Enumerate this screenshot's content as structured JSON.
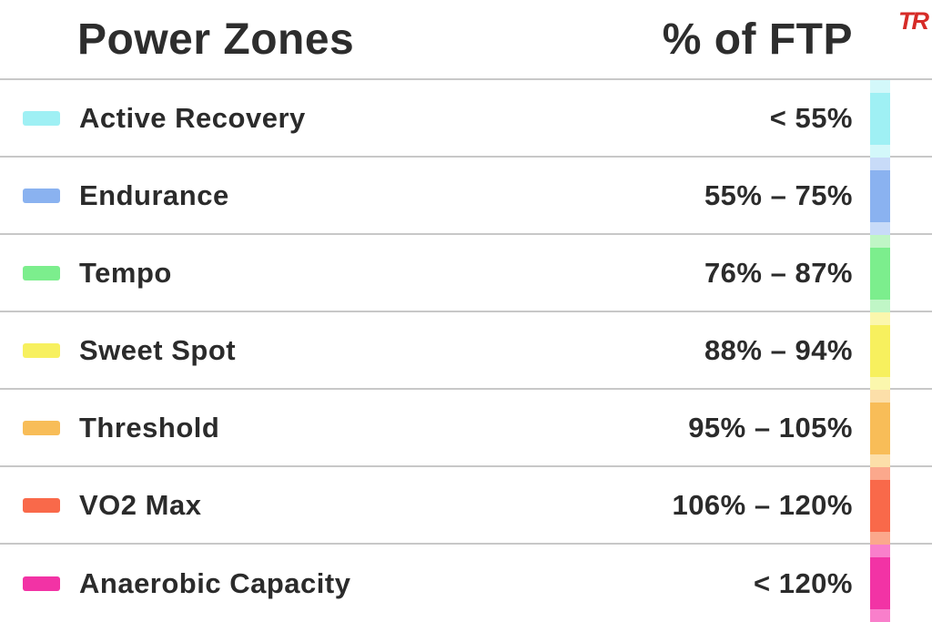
{
  "header": {
    "title": "Power Zones",
    "value_column": "% of FTP"
  },
  "logo": {
    "text": "TR",
    "color": "#d62b27"
  },
  "colors": {
    "text": "#2d2d2d",
    "divider": "#c8c8c8",
    "background": "#ffffff"
  },
  "chart_data": {
    "type": "table",
    "title": "Power Zones",
    "columns": [
      "Power Zones",
      "% of FTP"
    ],
    "rows": [
      {
        "zone": "Active Recovery",
        "ftp_range": "< 55%",
        "color": "#9ff0f4",
        "color_light": "#d3f8fa"
      },
      {
        "zone": "Endurance",
        "ftp_range": "55% – 75%",
        "color": "#8ab2f0",
        "color_light": "#c8dbf8"
      },
      {
        "zone": "Tempo",
        "ftp_range": "76% – 87%",
        "color": "#7cee8d",
        "color_light": "#c0f6c6"
      },
      {
        "zone": "Sweet Spot",
        "ftp_range": "88% – 94%",
        "color": "#f7f05e",
        "color_light": "#fbf7ad"
      },
      {
        "zone": "Threshold",
        "ftp_range": "95% – 105%",
        "color": "#f8bd58",
        "color_light": "#fcdfa9"
      },
      {
        "zone": "VO2 Max",
        "ftp_range": "106% – 120%",
        "color": "#f9694a",
        "color_light": "#fba88c"
      },
      {
        "zone": "Anaerobic Capacity",
        "ftp_range": "< 120%",
        "color": "#f233a5",
        "color_light": "#f97fcb"
      }
    ]
  }
}
